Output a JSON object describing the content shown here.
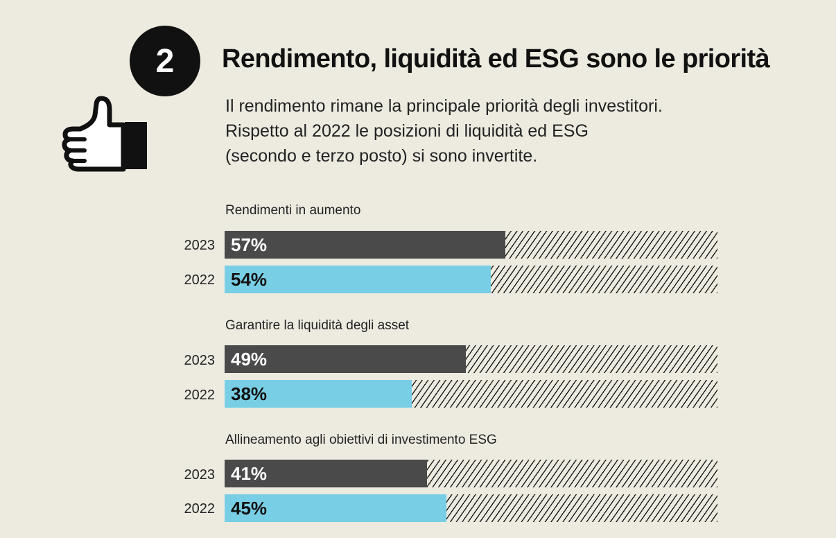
{
  "header": {
    "number": "2",
    "title": "Rendimento, liquidità ed ESG sono le priorità",
    "description": [
      "Il rendimento rimane la principale priorità degli investitori.",
      "Rispetto al 2022 le posizioni di liquidità ed ESG",
      "(secondo e terzo posto) si sono invertite."
    ]
  },
  "chart_data": {
    "type": "bar",
    "orientation": "horizontal",
    "xlim": [
      0,
      100
    ],
    "unit": "%",
    "series_names": [
      "2023",
      "2022"
    ],
    "colors": {
      "2023": "#4a4a4a",
      "2022": "#78cfe5"
    },
    "groups": [
      {
        "label": "Rendimenti in aumento",
        "rows": [
          {
            "year": "2023",
            "value": 57,
            "label": "57%"
          },
          {
            "year": "2022",
            "value": 54,
            "label": "54%"
          }
        ]
      },
      {
        "label": "Garantire la liquidità degli asset",
        "rows": [
          {
            "year": "2023",
            "value": 49,
            "label": "49%"
          },
          {
            "year": "2022",
            "value": 38,
            "label": "38%"
          }
        ]
      },
      {
        "label": "Allineamento agli obiettivi di investimento ESG",
        "rows": [
          {
            "year": "2023",
            "value": 41,
            "label": "41%"
          },
          {
            "year": "2022",
            "value": 45,
            "label": "45%"
          }
        ]
      }
    ]
  }
}
